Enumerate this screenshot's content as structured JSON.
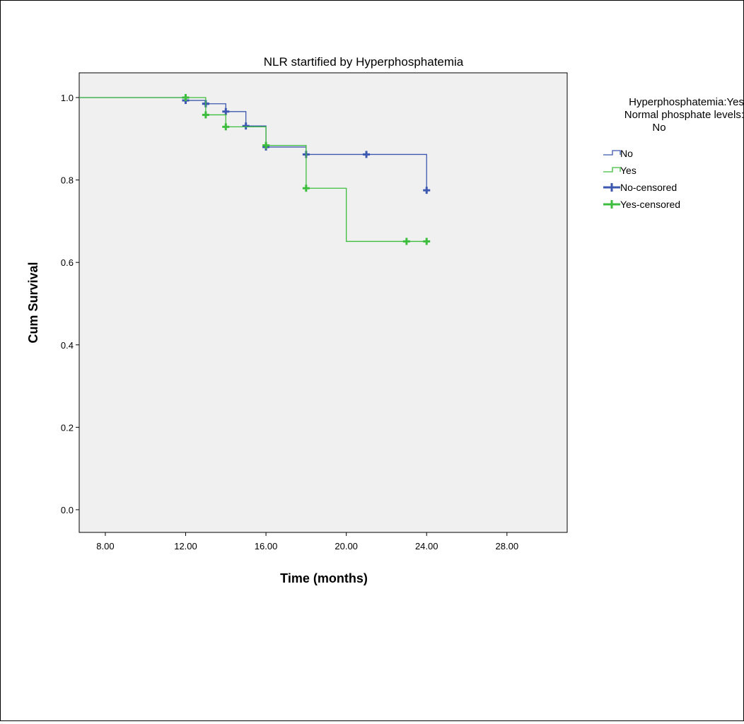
{
  "chart_data": {
    "type": "line",
    "subtype": "kaplan-meier",
    "title": "NLR startified by Hyperphosphatemia",
    "xlabel": "Time (months)",
    "ylabel": "Cum Survival",
    "xlim": [
      6.7,
      31
    ],
    "ylim": [
      -0.055,
      1.06
    ],
    "x_ticks": [
      "8.00",
      "12.00",
      "16.00",
      "20.00",
      "24.00",
      "28.00"
    ],
    "x_tick_values": [
      8,
      12,
      16,
      20,
      24,
      28
    ],
    "y_ticks": [
      "0.0",
      "0.2",
      "0.4",
      "0.6",
      "0.8",
      "1.0"
    ],
    "y_tick_values": [
      0.0,
      0.2,
      0.4,
      0.6,
      0.8,
      1.0
    ],
    "grid": false,
    "plot_background": "#f0f0f0",
    "legend": {
      "position": "right",
      "title_lines": [
        "Hyperphosphatemia:Yes",
        "Normal phosphate levels:",
        "No"
      ],
      "entries": [
        {
          "label": "No",
          "kind": "step",
          "color": "#3d58b0"
        },
        {
          "label": "Yes",
          "kind": "step",
          "color": "#3dbd3d"
        },
        {
          "label": "No-censored",
          "kind": "plus",
          "color": "#3d58b0"
        },
        {
          "label": "Yes-censored",
          "kind": "plus",
          "color": "#3dbd3d"
        }
      ]
    },
    "series": [
      {
        "name": "No",
        "color": "#3d58b0",
        "steps": [
          [
            6.7,
            1.0
          ],
          [
            12,
            0.993
          ],
          [
            13,
            0.985
          ],
          [
            14,
            0.966
          ],
          [
            15,
            0.931
          ],
          [
            16,
            0.88
          ],
          [
            18,
            0.862
          ],
          [
            24,
            0.775
          ]
        ],
        "censored": [
          [
            12,
            0.993
          ],
          [
            13,
            0.985
          ],
          [
            13,
            0.985
          ],
          [
            14,
            0.966
          ],
          [
            15,
            0.931
          ],
          [
            16,
            0.88
          ],
          [
            18,
            0.862
          ],
          [
            21,
            0.862
          ],
          [
            24,
            0.775
          ]
        ]
      },
      {
        "name": "Yes",
        "color": "#3dbd3d",
        "steps": [
          [
            6.7,
            1.0
          ],
          [
            13,
            0.958
          ],
          [
            14,
            0.929
          ],
          [
            16,
            0.884
          ],
          [
            18,
            0.78
          ],
          [
            20,
            0.651
          ],
          [
            24,
            0.651
          ]
        ],
        "censored": [
          [
            12,
            1.0
          ],
          [
            13,
            0.958
          ],
          [
            14,
            0.929
          ],
          [
            16,
            0.884
          ],
          [
            18,
            0.78
          ],
          [
            23,
            0.651
          ],
          [
            24,
            0.651
          ]
        ]
      }
    ]
  }
}
